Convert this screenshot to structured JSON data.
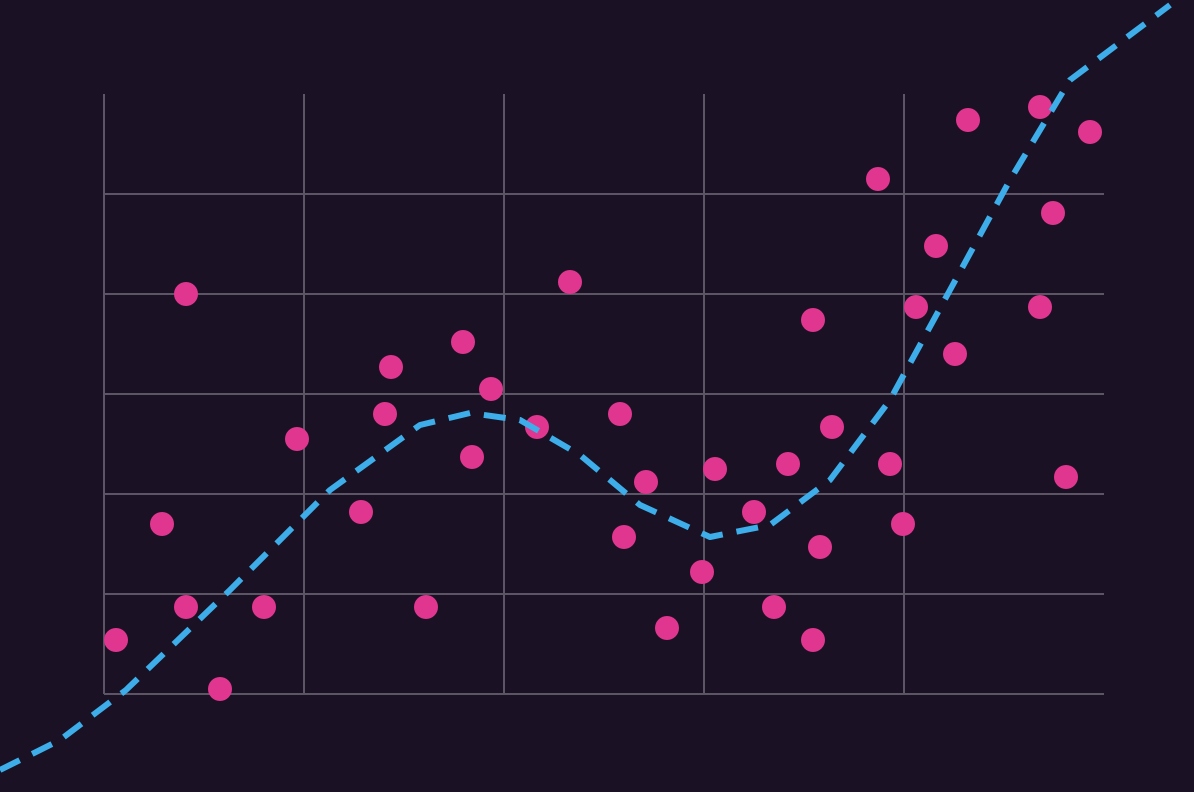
{
  "chart_data": {
    "type": "scatter",
    "xlim": [
      -0.52,
      5.45
    ],
    "ylim": [
      -0.98,
      6.94
    ],
    "xticks": [
      0,
      1,
      2,
      3,
      4
    ],
    "yticks": [
      0,
      1,
      2,
      3,
      4,
      5
    ],
    "grid": true,
    "grid_color": "#5c5566",
    "background": "#1a1224",
    "series": [
      {
        "type": "scatter",
        "color": "#e0368f",
        "x": [
          0.06,
          0.29,
          0.41,
          0.41,
          0.58,
          0.8,
          0.965,
          1.285,
          1.405,
          1.435,
          1.61,
          1.795,
          1.84,
          1.935,
          2.165,
          2.33,
          2.58,
          2.6,
          2.71,
          2.815,
          2.99,
          3.055,
          3.25,
          3.35,
          3.42,
          3.545,
          3.545,
          3.58,
          3.64,
          3.87,
          3.93,
          3.995,
          4.06,
          4.16,
          4.255,
          4.32,
          4.68,
          4.68,
          4.745,
          4.81,
          4.93
        ],
        "values": [
          0.54,
          1.7,
          4.0,
          0.87,
          0.05,
          0.87,
          2.55,
          1.82,
          2.8,
          3.27,
          0.87,
          3.52,
          2.37,
          3.05,
          2.67,
          4.12,
          2.8,
          1.57,
          2.12,
          0.66,
          1.22,
          2.25,
          1.82,
          0.87,
          2.3,
          3.74,
          0.54,
          1.47,
          2.67,
          5.15,
          2.3,
          1.7,
          3.87,
          4.48,
          3.4,
          5.74,
          5.87,
          3.87,
          4.81,
          2.17,
          5.62
        ]
      },
      {
        "type": "line",
        "color": "#3daee9",
        "dashed": true,
        "x": [
          -0.52,
          -0.22,
          0.11,
          0.63,
          1.13,
          1.58,
          1.83,
          2.08,
          2.38,
          2.68,
          3.03,
          3.33,
          3.63,
          3.93,
          4.23,
          4.53,
          4.83,
          5.33
        ],
        "values": [
          -0.76,
          -0.46,
          0.04,
          1.04,
          2.04,
          2.69,
          2.81,
          2.74,
          2.39,
          1.89,
          1.57,
          1.69,
          2.14,
          2.94,
          4.04,
          5.14,
          6.14,
          6.89
        ]
      }
    ]
  }
}
